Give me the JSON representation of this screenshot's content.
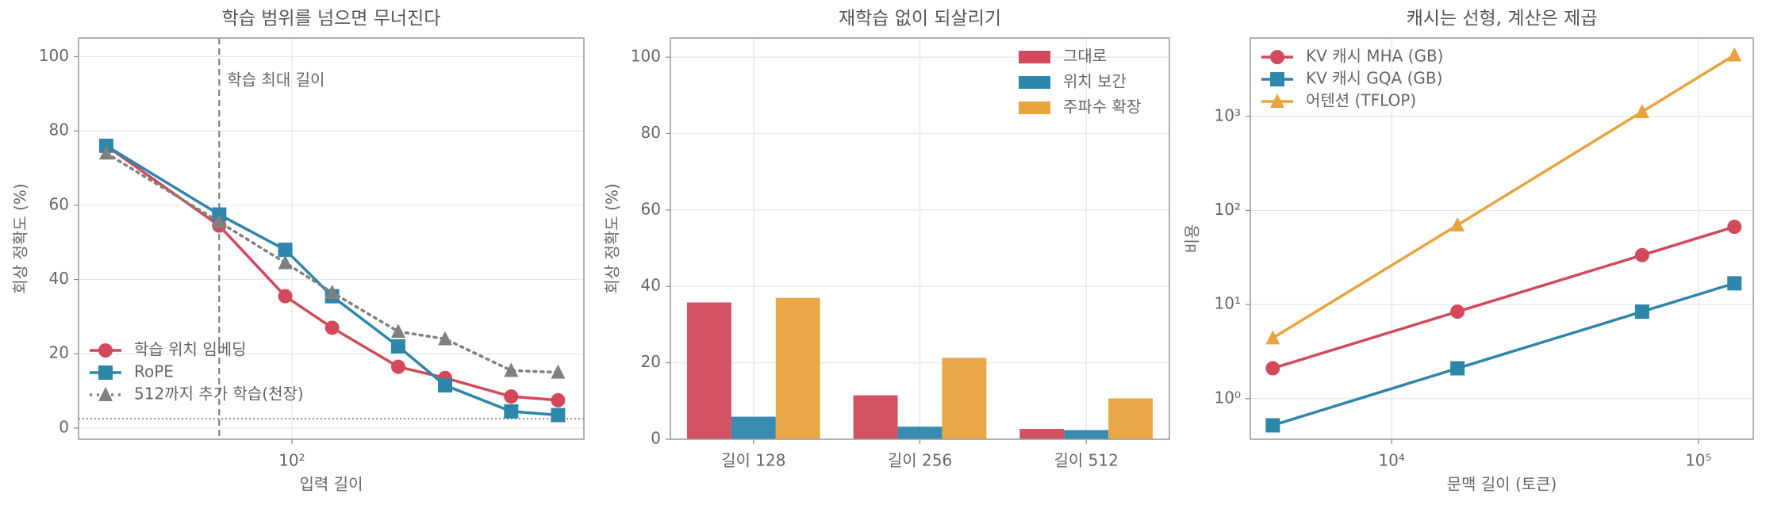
{
  "chart_data": [
    {
      "type": "line",
      "title": "학습 범위를 넘으면 무너진다",
      "xlabel": "입력 길이",
      "ylabel": "회상 정확도 (%)",
      "x": [
        32,
        64,
        96,
        128,
        192,
        256,
        384,
        512
      ],
      "xlog": true,
      "xlim": [
        27,
        600
      ],
      "xticks": [
        {
          "value": 100,
          "label": "10²"
        }
      ],
      "ylim": [
        -3,
        105
      ],
      "yticks": [
        0,
        20,
        40,
        60,
        80,
        100
      ],
      "grid": true,
      "legend": "lower left",
      "vline": {
        "x": 64,
        "label": "학습 최대 길이"
      },
      "hline": 2.5,
      "series": [
        {
          "name": "학습 위치 임베딩",
          "color": "#d1495b",
          "marker": "circle",
          "style": "solid",
          "values": [
            76,
            54.5,
            35.5,
            27,
            16.5,
            13.5,
            8.5,
            7.5
          ]
        },
        {
          "name": "RoPE",
          "color": "#2e86ab",
          "marker": "square",
          "style": "solid",
          "values": [
            76,
            57.5,
            48,
            35.5,
            22,
            11.5,
            4.5,
            3.5
          ]
        },
        {
          "name": "512까지 추가 학습(천장)",
          "color": "#808080",
          "marker": "triangle",
          "style": "dotted",
          "values": [
            74,
            55.5,
            44.5,
            36.5,
            26,
            24,
            15.5,
            15
          ]
        }
      ]
    },
    {
      "type": "bar",
      "title": "재학습 없이 되살리기",
      "ylabel": "회상 정확도 (%)",
      "categories": [
        "길이 128",
        "길이 256",
        "길이 512"
      ],
      "ylim": [
        0,
        105
      ],
      "yticks": [
        0,
        20,
        40,
        60,
        80,
        100
      ],
      "grid": true,
      "legend": "upper right",
      "series": [
        {
          "name": "그대로",
          "color": "#d1495b",
          "values": [
            35.8,
            11.5,
            2.7
          ]
        },
        {
          "name": "위치 보간",
          "color": "#2e86ab",
          "values": [
            5.9,
            3.3,
            2.4
          ]
        },
        {
          "name": "주파수 확장",
          "color": "#e8a33d",
          "values": [
            37,
            21.3,
            10.7
          ]
        }
      ]
    },
    {
      "type": "line",
      "title": "캐시는 선형, 계산은 제곱",
      "xlabel": "문맥 길이 (토큰)",
      "ylabel": "비용",
      "x": [
        4096,
        16384,
        65536,
        131072
      ],
      "xlog": true,
      "ylog": true,
      "xlim": [
        3460,
        151000
      ],
      "xticks": [
        {
          "value": 10000,
          "label": "10⁴"
        },
        {
          "value": 100000,
          "label": "10⁵"
        }
      ],
      "ylim": [
        0.37,
        6800
      ],
      "yticks": [
        {
          "value": 1,
          "label": "10⁰"
        },
        {
          "value": 10,
          "label": "10¹"
        },
        {
          "value": 100,
          "label": "10²"
        },
        {
          "value": 1000,
          "label": "10³"
        }
      ],
      "grid": true,
      "legend": "upper left",
      "series": [
        {
          "name": "KV 캐시 MHA (GB)",
          "color": "#d1495b",
          "marker": "circle",
          "style": "solid",
          "values": [
            2.1,
            8.4,
            33.5,
            67
          ]
        },
        {
          "name": "KV 캐시 GQA (GB)",
          "color": "#2e86ab",
          "marker": "square",
          "style": "solid",
          "values": [
            0.52,
            2.1,
            8.4,
            16.8
          ]
        },
        {
          "name": "어텐션 (TFLOP)",
          "color": "#e8a33d",
          "marker": "triangle",
          "style": "solid",
          "values": [
            4.4,
            70,
            1120,
            4480
          ]
        }
      ]
    }
  ]
}
